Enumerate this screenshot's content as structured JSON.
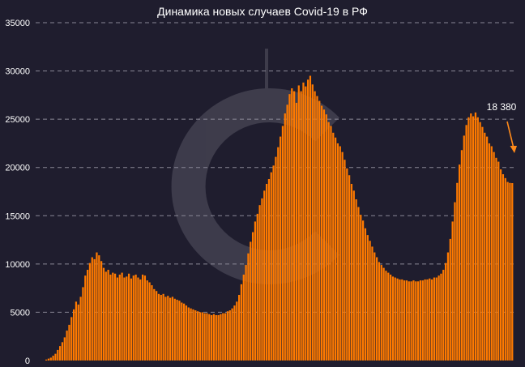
{
  "chart_data": {
    "type": "bar",
    "title": "Динамика новых случаев Covid-19 в РФ",
    "xlabel": "",
    "ylabel": "",
    "ylim": [
      0,
      35000
    ],
    "yticks": [
      0,
      5000,
      10000,
      15000,
      20000,
      25000,
      30000,
      35000
    ],
    "ytick_labels": [
      "0",
      "5000",
      "10000",
      "15000",
      "20000",
      "25000",
      "30000",
      "35000"
    ],
    "grid": true,
    "color": "#ff7a00",
    "last_value_label": "18 380",
    "values": [
      100,
      200,
      300,
      500,
      700,
      1100,
      1500,
      1900,
      2400,
      3100,
      3700,
      4500,
      5300,
      6100,
      5800,
      6600,
      7600,
      8800,
      9400,
      10100,
      10700,
      10500,
      11200,
      10900,
      10300,
      9600,
      9200,
      9400,
      8900,
      9100,
      9000,
      8600,
      8900,
      9100,
      8600,
      8700,
      9000,
      8500,
      8800,
      8900,
      8600,
      8400,
      8900,
      8800,
      8300,
      8100,
      7800,
      7400,
      7200,
      6900,
      6800,
      6900,
      6600,
      6700,
      6500,
      6600,
      6400,
      6300,
      6200,
      6000,
      5900,
      5700,
      5500,
      5400,
      5300,
      5200,
      5100,
      5000,
      5000,
      4900,
      4900,
      4800,
      4700,
      4800,
      4700,
      4700,
      4800,
      4900,
      4900,
      5100,
      5200,
      5400,
      5700,
      6100,
      6800,
      7900,
      8900,
      9900,
      11100,
      12300,
      13300,
      14400,
      15200,
      16100,
      16800,
      17600,
      18300,
      18800,
      19500,
      20200,
      21100,
      22100,
      23200,
      24300,
      25600,
      26500,
      27600,
      28200,
      27900,
      26700,
      28500,
      27900,
      28800,
      28400,
      29100,
      29500,
      28600,
      27900,
      27400,
      26900,
      26400,
      26000,
      25500,
      24700,
      24300,
      23600,
      23100,
      22500,
      22200,
      21600,
      20800,
      19900,
      19200,
      18300,
      17600,
      16700,
      15900,
      15100,
      14500,
      13700,
      13000,
      12400,
      11800,
      11200,
      10700,
      10200,
      9900,
      9600,
      9300,
      9100,
      8900,
      8700,
      8600,
      8500,
      8400,
      8400,
      8300,
      8300,
      8200,
      8200,
      8300,
      8200,
      8200,
      8300,
      8300,
      8400,
      8400,
      8500,
      8400,
      8600,
      8600,
      8800,
      9000,
      9400,
      10100,
      11200,
      12600,
      14400,
      16400,
      18400,
      20300,
      21800,
      23300,
      24400,
      25200,
      25600,
      25300,
      25700,
      25200,
      24700,
      24200,
      23600,
      23200,
      22500,
      22200,
      21600,
      21000,
      20600,
      19800,
      19300,
      18900,
      18500,
      18400,
      18380
    ]
  }
}
